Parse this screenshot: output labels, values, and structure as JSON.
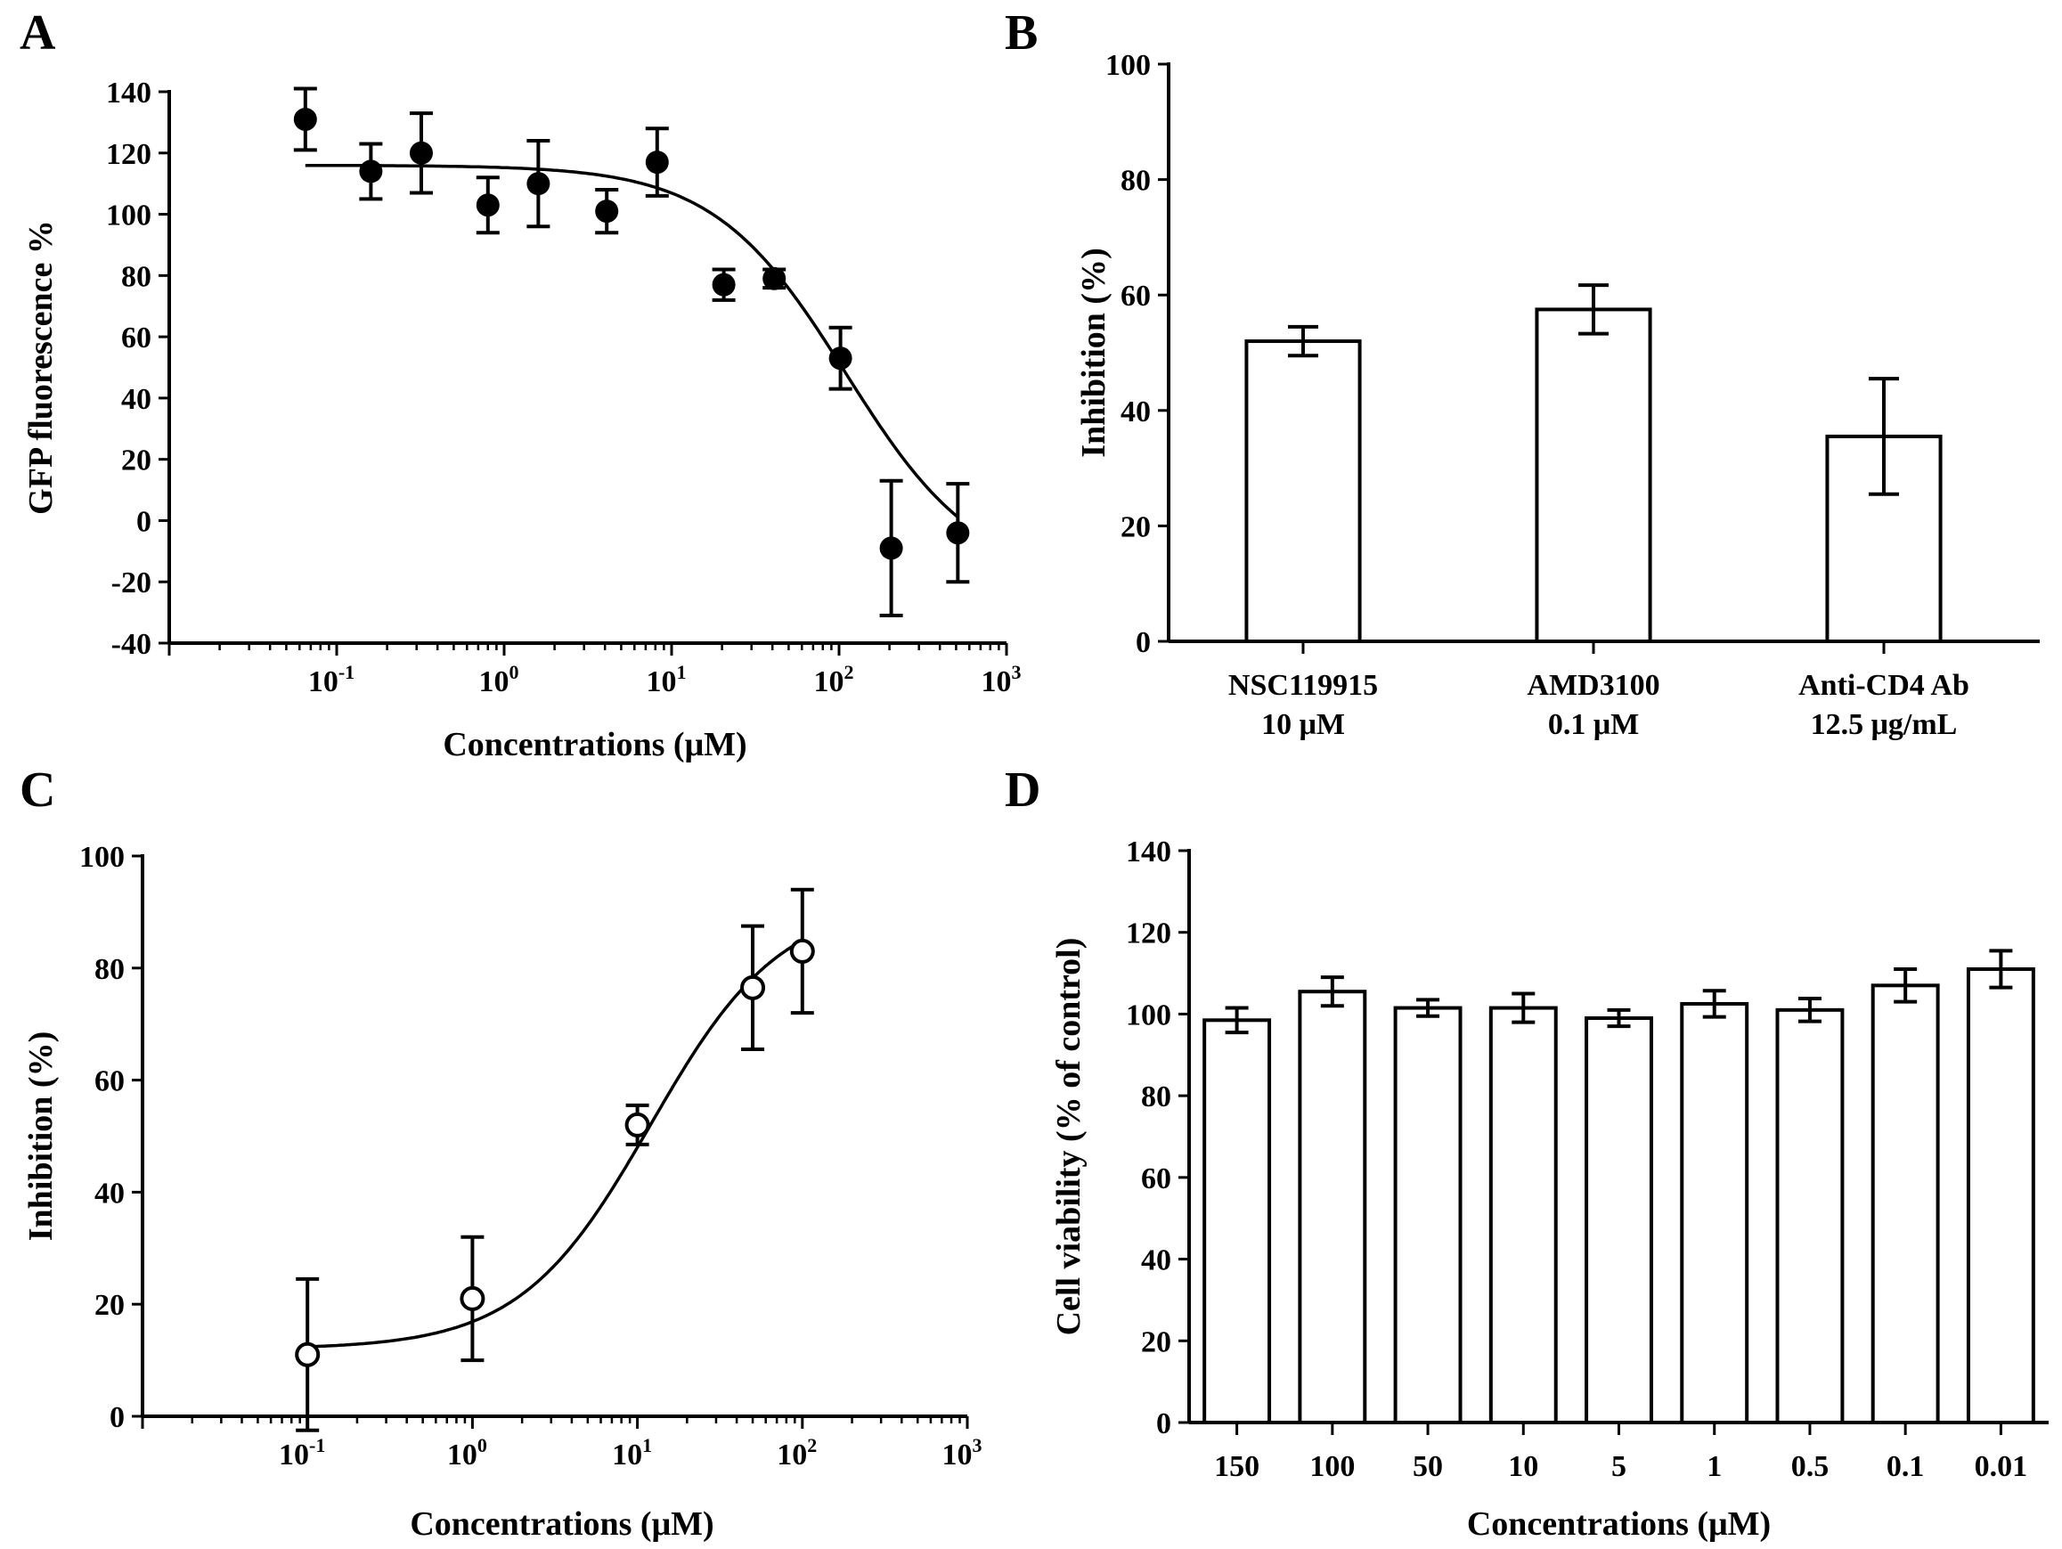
{
  "chart_data": [
    {
      "panel": "A",
      "type": "scatter",
      "xscale": "log",
      "x_tick_labels": [
        "10",
        "10",
        "10",
        "10",
        "10"
      ],
      "x_tick_exponents": [
        "-1",
        "0",
        "1",
        "2",
        "3"
      ],
      "xlabel": "Concentrations (μM)",
      "ylabel": "GFP fluorescence %",
      "ylim": [
        -40,
        140
      ],
      "yticks": [
        -40,
        -20,
        0,
        20,
        40,
        60,
        80,
        100,
        120,
        140
      ],
      "xlim": [
        0.01,
        1000
      ],
      "series": [
        {
          "name": "GFP fluorescence",
          "marker": "filled-circle",
          "x": [
            0.065,
            0.16,
            0.32,
            0.8,
            1.6,
            4.1,
            8.2,
            20.5,
            41,
            102,
            205,
            512
          ],
          "y": [
            131,
            114,
            120,
            103,
            110,
            101,
            117,
            77,
            79,
            53,
            -9,
            -4
          ],
          "err": [
            10,
            9,
            13,
            9,
            14,
            7,
            11,
            5,
            3,
            10,
            22,
            16
          ]
        }
      ],
      "fit": {
        "top": 116,
        "bottom": -20,
        "ec50": 110,
        "hill": 1.1
      }
    },
    {
      "panel": "B",
      "type": "bar",
      "ylabel": "Inhibition (%)",
      "ylim": [
        0,
        100
      ],
      "yticks": [
        0,
        20,
        40,
        60,
        80,
        100
      ],
      "categories": [
        [
          "NSC119915",
          "10 μM"
        ],
        [
          "AMD3100",
          "0.1 μM"
        ],
        [
          "Anti-CD4 Ab",
          "12.5 μg/mL"
        ]
      ],
      "values": [
        52,
        57.5,
        35.5
      ],
      "err": [
        2.5,
        4.2,
        10
      ]
    },
    {
      "panel": "C",
      "type": "scatter",
      "xscale": "log",
      "x_tick_labels": [
        "10",
        "10",
        "10",
        "10",
        "10"
      ],
      "x_tick_exponents": [
        "-1",
        "0",
        "1",
        "2",
        "3"
      ],
      "xlabel": "Concentrations (μM)",
      "ylabel": "Inhibition (%)",
      "ylim": [
        0,
        100
      ],
      "yticks": [
        0,
        20,
        40,
        60,
        80,
        100
      ],
      "xlim": [
        0.01,
        1000
      ],
      "series": [
        {
          "name": "Inhibition",
          "marker": "open-circle",
          "x": [
            0.1,
            1,
            10,
            50,
            100
          ],
          "y": [
            11,
            21,
            52,
            76.5,
            83
          ],
          "err": [
            13.5,
            11,
            3.5,
            11,
            11
          ]
        }
      ],
      "fit": {
        "top": 92,
        "bottom": 12,
        "ec50": 12,
        "hill": 1.1
      }
    },
    {
      "panel": "D",
      "type": "bar",
      "xlabel": "Concentrations (μM)",
      "ylabel": "Cell viability (% of control)",
      "ylim": [
        0,
        140
      ],
      "yticks": [
        0,
        20,
        40,
        60,
        80,
        100,
        120,
        140
      ],
      "categories": [
        "150",
        "100",
        "50",
        "10",
        "5",
        "1",
        "0.5",
        "0.1",
        "0.01"
      ],
      "values": [
        98.5,
        105.5,
        101.5,
        101.5,
        99,
        102.5,
        101,
        107,
        111
      ],
      "err": [
        3,
        3.5,
        2,
        3.5,
        2,
        3.2,
        2.8,
        4,
        4.5
      ]
    }
  ]
}
